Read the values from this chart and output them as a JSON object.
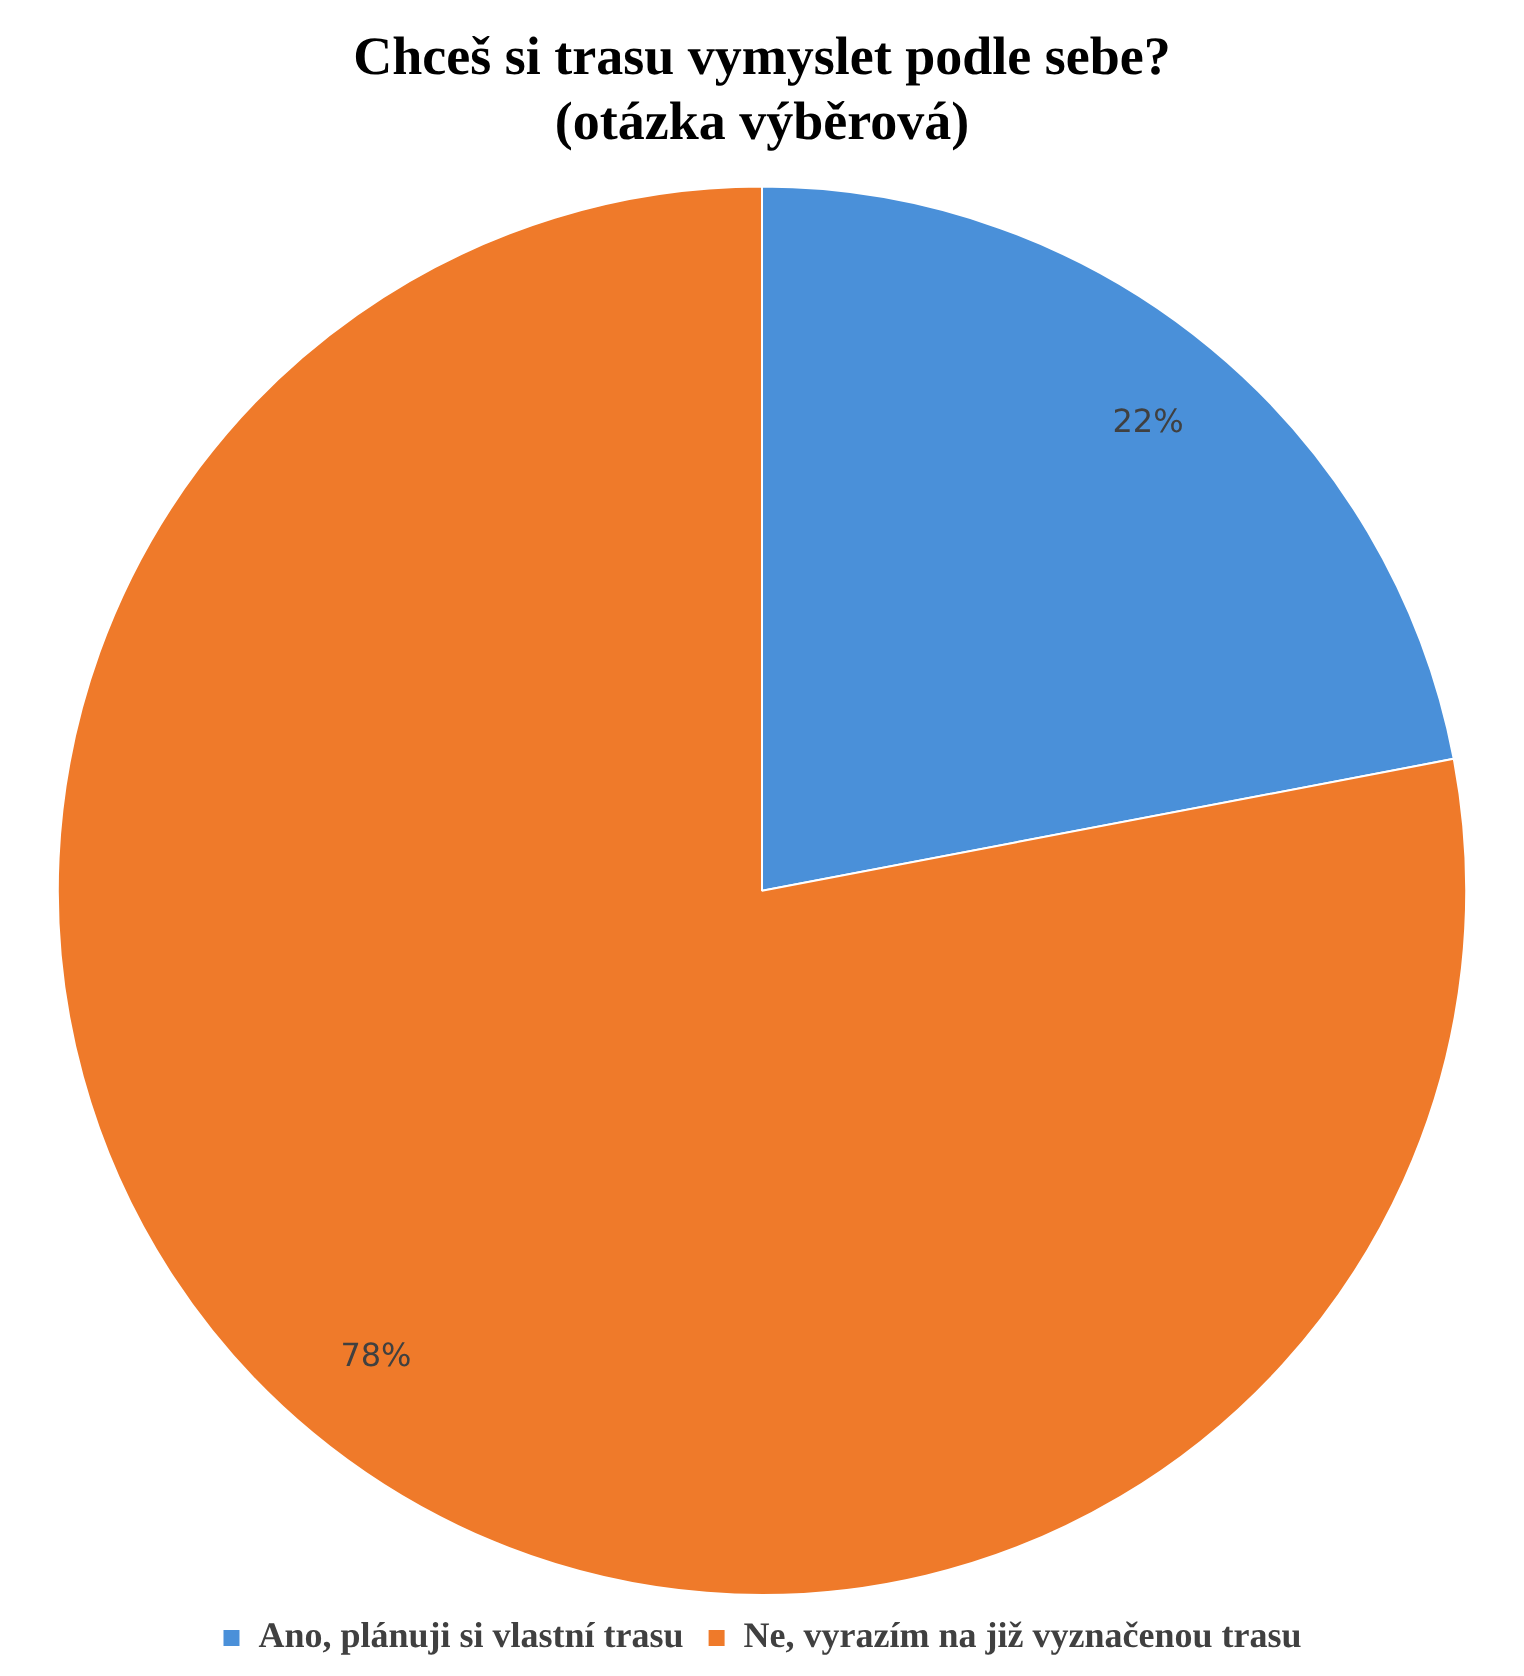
{
  "chart_data": {
    "type": "pie",
    "title": "Chceš si trasu vymyslet podle sebe?\n(otázka výběrová)",
    "categories": [
      "Ano, plánuji si vlastní trasu",
      "Ne, vyrazím na již vyznačenou trasu"
    ],
    "values": [
      22,
      78
    ],
    "colors": [
      "#4a90d9",
      "#ef7a2a"
    ],
    "value_labels": [
      "22%",
      "78%"
    ],
    "legend": "bottom"
  }
}
